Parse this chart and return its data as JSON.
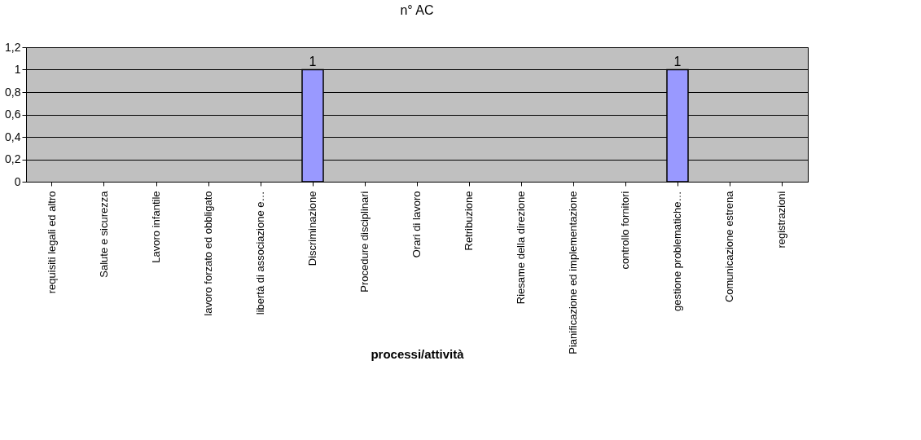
{
  "chart_data": {
    "type": "bar",
    "title": "n° AC",
    "xlabel": "processi/attività",
    "categories": [
      "requisiti legali ed altro",
      "Salute e sicurezza",
      "Lavoro infantile",
      "lavoro forzato ed obbligato",
      "libertà di associazione e…",
      "Discriminazione",
      "Procedure disciplinari",
      "Orari di lavoro",
      "Retribuzione",
      "Riesame della direzione",
      "Pianificazione ed implementazione",
      "controllo fornitori",
      "gestione problematiche…",
      "Comunicazione estrena",
      "registrazioni"
    ],
    "series": [
      {
        "color": "#9999ff",
        "values": [
          0,
          0,
          0,
          0,
          0,
          1,
          0,
          0,
          0,
          0,
          0,
          0,
          1,
          0,
          0
        ],
        "value_labels": [
          null,
          null,
          null,
          null,
          null,
          "1",
          null,
          null,
          null,
          null,
          null,
          null,
          "1",
          null,
          null
        ]
      }
    ],
    "ylim": [
      0,
      1.2
    ],
    "yticks": [
      0,
      {
        "value": 0.2,
        "label": "0,2"
      },
      {
        "value": 0.4,
        "label": "0,4"
      },
      {
        "value": 0.6,
        "label": "0,6"
      },
      {
        "value": 0.8,
        "label": "0,8"
      },
      1,
      {
        "value": 1.2,
        "label": "1,2"
      }
    ],
    "grid": "y",
    "legend": false
  }
}
